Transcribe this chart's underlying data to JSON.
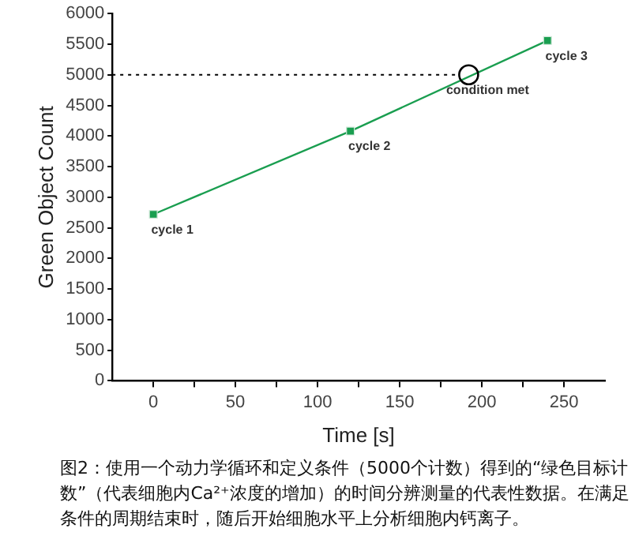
{
  "chart_data": {
    "type": "line",
    "xlabel": "Time [s]",
    "ylabel": "Green Object Count",
    "xlim": [
      -25,
      275
    ],
    "xticks": [
      0,
      {
        "value": 25,
        "label": null
      },
      50,
      {
        "value": 75,
        "label": null
      },
      100,
      {
        "value": 125,
        "label": null
      },
      150,
      {
        "value": 175,
        "label": null
      },
      200,
      {
        "value": 225,
        "label": null
      },
      250
    ],
    "ylim": [
      0,
      6000
    ],
    "yticks": [
      0,
      500,
      1000,
      1500,
      2000,
      2500,
      3000,
      3500,
      4000,
      4500,
      5000,
      5500,
      6000
    ],
    "series": [
      {
        "color": "#1a9e50",
        "x": [
          0,
          120,
          240
        ],
        "values": [
          2720,
          4080,
          5560
        ],
        "marker": "square"
      },
      {
        "type": "scatter",
        "color": "#000000",
        "x": [
          192
        ],
        "values": [
          5000
        ],
        "marker": "circle"
      }
    ],
    "ref_lines": [
      {
        "axis": "y",
        "value": 5000,
        "color": "#000000",
        "line_style": "dotted"
      }
    ],
    "annotations": [
      {
        "text": "cycle 1",
        "x": 0,
        "y": 2720
      },
      {
        "text": "cycle 2",
        "x": 120,
        "y": 4080
      },
      {
        "text": "cycle 3",
        "x": 240,
        "y": 5560
      },
      {
        "text": "condition met",
        "x": 192,
        "y": 5000
      },
      "图2：使用一个动力学循环和定义条件（5000个计数）得到的“绿色目标计数”（代表细胞内Ca²⁺浓度的增加）的时间分辨测量的代表性数据。在满足条件的周期结束时，随后开始细胞水平上分析细胞内钙离子。"
    ],
    "grid": false,
    "legend": false
  }
}
